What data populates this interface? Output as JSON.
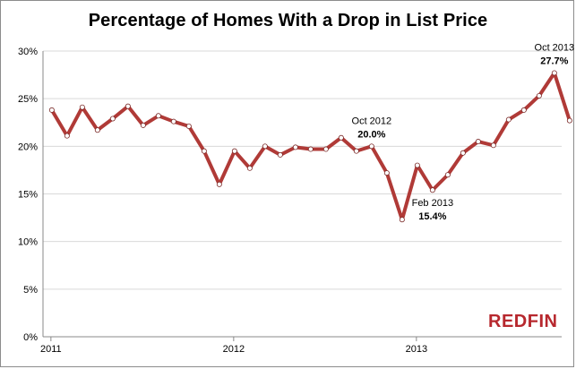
{
  "logo_text": "REDFIN",
  "colors": {
    "line": "#b03a37",
    "marker_fill": "#ffffff",
    "grid": "#d9d9d9",
    "axis": "#888888",
    "logo": "#b7282e"
  },
  "chart_data": {
    "type": "line",
    "title": "Percentage of Homes With a Drop in List Price",
    "xlabel": "",
    "ylabel": "",
    "ylim": [
      0,
      30
    ],
    "y_ticks": [
      "0%",
      "5%",
      "10%",
      "15%",
      "20%",
      "25%",
      "30%"
    ],
    "x_tick_labels": [
      "2011",
      "2012",
      "2013"
    ],
    "x": [
      "Jan 2011",
      "Feb 2011",
      "Mar 2011",
      "Apr 2011",
      "May 2011",
      "Jun 2011",
      "Jul 2011",
      "Aug 2011",
      "Sep 2011",
      "Oct 2011",
      "Nov 2011",
      "Dec 2011",
      "Jan 2012",
      "Feb 2012",
      "Mar 2012",
      "Apr 2012",
      "May 2012",
      "Jun 2012",
      "Jul 2012",
      "Aug 2012",
      "Sep 2012",
      "Oct 2012",
      "Nov 2012",
      "Dec 2012",
      "Jan 2013",
      "Feb 2013",
      "Mar 2013",
      "Apr 2013",
      "May 2013",
      "Jun 2013",
      "Jul 2013",
      "Aug 2013",
      "Sep 2013",
      "Oct 2013",
      "Nov 2013"
    ],
    "values": [
      23.8,
      21.1,
      24.1,
      21.7,
      22.9,
      24.2,
      22.2,
      23.2,
      22.6,
      22.1,
      19.5,
      16.0,
      19.5,
      17.7,
      20.0,
      19.1,
      19.9,
      19.7,
      19.7,
      20.9,
      19.5,
      20.0,
      17.2,
      12.3,
      18.0,
      15.4,
      17.0,
      19.3,
      20.5,
      20.1,
      22.8,
      23.8,
      25.3,
      27.7,
      22.7
    ],
    "annotations": [
      {
        "label": "Oct 2012",
        "value_label": "20.0%",
        "index": 21,
        "side": "above"
      },
      {
        "label": "Feb 2013",
        "value_label": "15.4%",
        "index": 25,
        "side": "below"
      },
      {
        "label": "Oct 2013",
        "value_label": "27.7%",
        "index": 33,
        "side": "above"
      }
    ],
    "grid": true,
    "legend": "none"
  }
}
